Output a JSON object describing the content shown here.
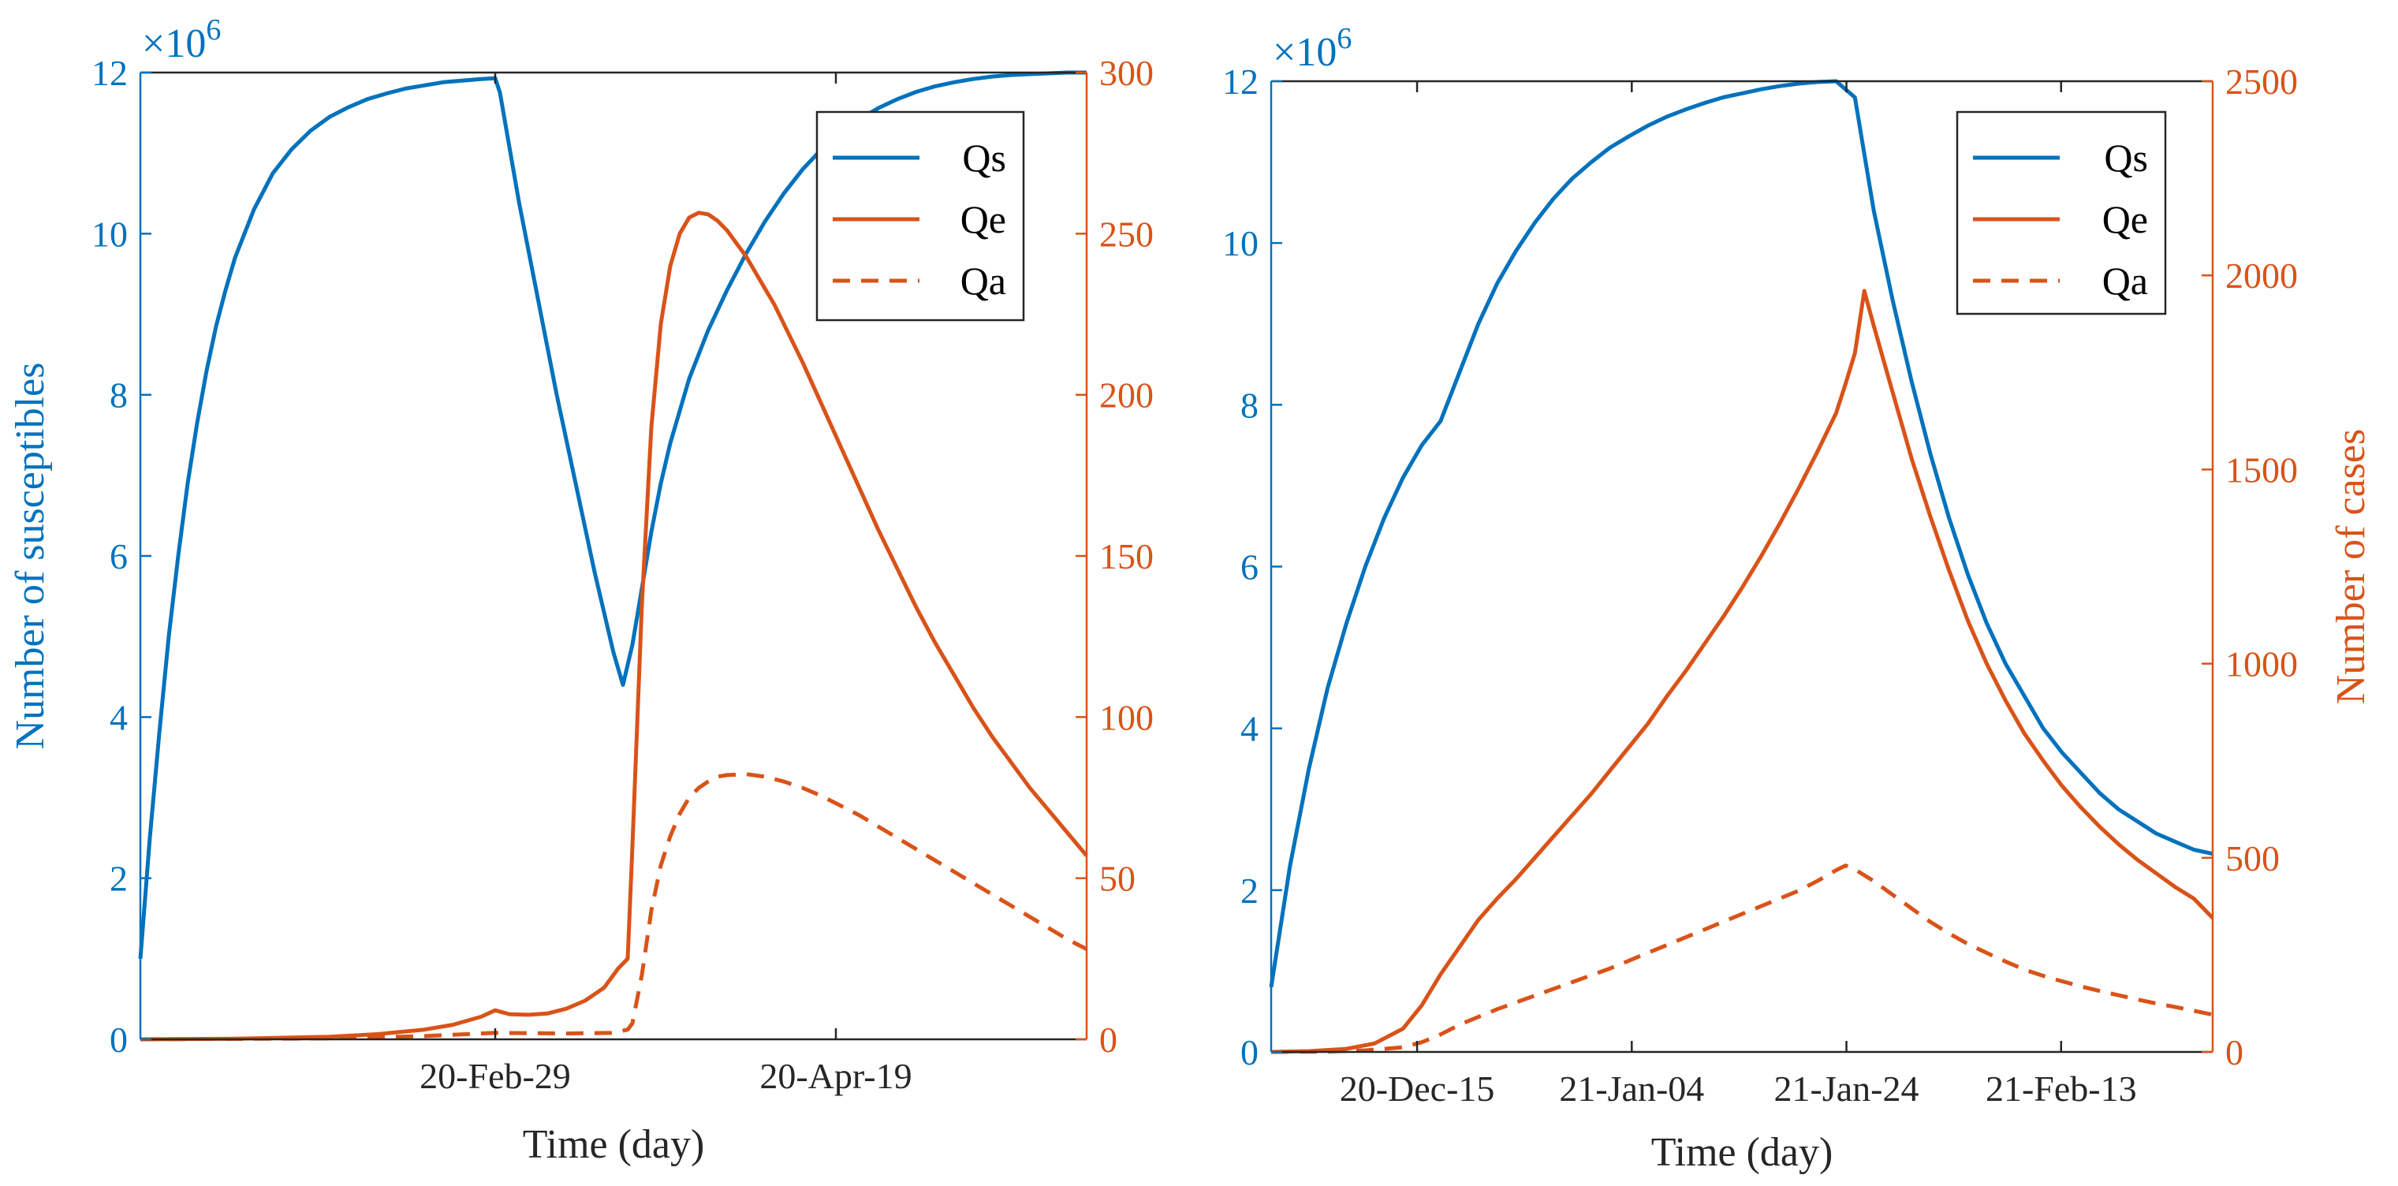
{
  "chart_data": [
    {
      "type": "line",
      "xlabel": "Time (day)",
      "ylabel_left": "Number of susceptibles",
      "ylabel_right": "",
      "x_range": [
        0,
        100
      ],
      "x_ticks": [
        {
          "x": 37.5,
          "label": "20-Feb-29"
        },
        {
          "x": 73.5,
          "label": "20-Apr-19"
        }
      ],
      "ylim_left": [
        0,
        12
      ],
      "yticks_left": [
        "0",
        "2",
        "4",
        "6",
        "8",
        "10",
        "12"
      ],
      "left_exponent": "×10",
      "left_exponent_power": "6",
      "ylim_right": [
        0,
        300
      ],
      "yticks_right": [
        "0",
        "50",
        "100",
        "150",
        "200",
        "250",
        "300"
      ],
      "colors": {
        "left": "#0072BD",
        "right": "#D95319"
      },
      "legend": {
        "position": "top-right",
        "entries": [
          "Qs",
          "Qe",
          "Qa"
        ]
      },
      "series": [
        {
          "name": "Qs",
          "axis": "left",
          "style": "solid",
          "x": [
            0,
            1,
            2,
            3,
            4,
            5,
            6,
            7,
            8,
            9,
            10,
            12,
            14,
            16,
            18,
            20,
            22,
            24,
            26,
            28,
            30,
            32,
            34,
            36,
            37.5,
            38,
            40,
            42,
            44,
            46,
            48,
            50,
            51,
            52,
            53,
            54,
            55,
            56,
            57,
            58,
            60,
            62,
            64,
            66,
            68,
            70,
            72,
            74,
            76,
            78,
            80,
            82,
            84,
            86,
            88,
            90,
            92,
            94,
            96,
            98,
            100
          ],
          "values": [
            1.0,
            2.5,
            3.8,
            5.0,
            6.0,
            6.9,
            7.65,
            8.3,
            8.85,
            9.3,
            9.7,
            10.3,
            10.75,
            11.05,
            11.28,
            11.45,
            11.57,
            11.67,
            11.74,
            11.8,
            11.84,
            11.88,
            11.9,
            11.92,
            11.93,
            11.75,
            10.4,
            9.2,
            8.0,
            6.9,
            5.8,
            4.8,
            4.4,
            4.9,
            5.6,
            6.3,
            6.9,
            7.4,
            7.8,
            8.2,
            8.8,
            9.3,
            9.75,
            10.15,
            10.5,
            10.8,
            11.05,
            11.25,
            11.42,
            11.56,
            11.67,
            11.76,
            11.83,
            11.88,
            11.92,
            11.95,
            11.97,
            11.98,
            11.99,
            12.0,
            12.0
          ]
        },
        {
          "name": "Qe",
          "axis": "right",
          "style": "solid",
          "x": [
            0,
            10,
            20,
            25,
            30,
            33,
            36,
            37.5,
            39,
            41,
            43,
            45,
            47,
            49,
            50.5,
            51.5,
            52,
            53,
            54,
            55,
            56,
            57,
            58,
            59,
            60,
            61,
            62,
            63,
            64,
            65,
            66,
            67,
            68,
            70,
            72,
            74,
            76,
            78,
            80,
            82,
            84,
            86,
            88,
            90,
            92,
            94,
            96,
            98,
            100
          ],
          "values": [
            0,
            0.2,
            0.8,
            1.6,
            3.0,
            4.5,
            7.0,
            9.0,
            7.8,
            7.6,
            8.0,
            9.5,
            12.0,
            16.0,
            22.0,
            25.0,
            60.0,
            135.0,
            190.0,
            222.0,
            240.0,
            250.0,
            255.0,
            256.5,
            256.0,
            254.0,
            251.0,
            247.0,
            243.0,
            238.0,
            233.0,
            228.0,
            222.0,
            210.0,
            197.0,
            184.0,
            171.0,
            158.0,
            146.0,
            134.0,
            123.0,
            113.0,
            103.0,
            94.0,
            86.0,
            78.0,
            71.0,
            64.0,
            57.0
          ]
        },
        {
          "name": "Qa",
          "axis": "right",
          "style": "dashed",
          "x": [
            0,
            20,
            30,
            37.5,
            45,
            50,
            51.5,
            52,
            53,
            54,
            55,
            56,
            57,
            58,
            59,
            60,
            61,
            62,
            64,
            66,
            68,
            70,
            72,
            74,
            76,
            78,
            80,
            82,
            84,
            86,
            88,
            90,
            92,
            94,
            96,
            98,
            100
          ],
          "values": [
            0,
            0.3,
            1.0,
            2.0,
            1.8,
            2.0,
            3.0,
            5.0,
            20.0,
            40.0,
            54.0,
            63.0,
            70.0,
            75.0,
            78.0,
            80.0,
            81.5,
            82.0,
            82.3,
            81.5,
            80.0,
            78.0,
            75.5,
            72.5,
            69.5,
            66.0,
            62.5,
            59.0,
            55.5,
            52.0,
            48.5,
            45.0,
            41.5,
            38.0,
            34.5,
            31.0,
            28.0
          ]
        }
      ]
    },
    {
      "type": "line",
      "xlabel": "Time (day)",
      "ylabel_left": "",
      "ylabel_right": "Number of cases",
      "x_range": [
        0,
        100
      ],
      "x_ticks": [
        {
          "x": 15.5,
          "label": "20-Dec-15"
        },
        {
          "x": 38.3,
          "label": "21-Jan-04"
        },
        {
          "x": 61.1,
          "label": "21-Jan-24"
        },
        {
          "x": 83.9,
          "label": "21-Feb-13"
        }
      ],
      "ylim_left": [
        0,
        12
      ],
      "yticks_left": [
        "0",
        "2",
        "4",
        "6",
        "8",
        "10",
        "12"
      ],
      "left_exponent": "×10",
      "left_exponent_power": "6",
      "ylim_right": [
        0,
        2500
      ],
      "yticks_right": [
        "0",
        "500",
        "1000",
        "1500",
        "2000",
        "2500"
      ],
      "colors": {
        "left": "#0072BD",
        "right": "#D95319"
      },
      "legend": {
        "position": "top-right",
        "entries": [
          "Qs",
          "Qe",
          "Qa"
        ]
      },
      "series": [
        {
          "name": "Qs",
          "axis": "left",
          "style": "solid",
          "x": [
            0,
            2,
            4,
            6,
            8,
            10,
            12,
            14,
            16,
            18,
            20,
            22,
            24,
            26,
            28,
            30,
            32,
            34,
            36,
            38,
            40,
            42,
            44,
            46,
            48,
            50,
            52,
            54,
            56,
            58,
            60,
            62,
            63,
            64,
            66,
            68,
            70,
            72,
            74,
            76,
            78,
            80,
            82,
            84,
            86,
            88,
            90,
            92,
            94,
            96,
            98,
            100
          ],
          "values": [
            0.8,
            2.3,
            3.5,
            4.5,
            5.3,
            6.0,
            6.6,
            7.1,
            7.5,
            7.8,
            8.4,
            9.0,
            9.5,
            9.9,
            10.25,
            10.55,
            10.8,
            11.0,
            11.18,
            11.32,
            11.45,
            11.56,
            11.65,
            11.73,
            11.8,
            11.85,
            11.9,
            11.94,
            11.97,
            11.99,
            12.0,
            11.8,
            11.1,
            10.4,
            9.3,
            8.3,
            7.4,
            6.6,
            5.9,
            5.3,
            4.8,
            4.4,
            4.0,
            3.7,
            3.45,
            3.2,
            3.0,
            2.85,
            2.7,
            2.6,
            2.5,
            2.45
          ]
        },
        {
          "name": "Qe",
          "axis": "right",
          "style": "solid",
          "x": [
            0,
            4,
            8,
            11,
            14,
            16,
            18,
            20,
            22,
            24,
            26,
            28,
            30,
            32,
            34,
            36,
            38,
            40,
            42,
            44,
            46,
            48,
            50,
            52,
            54,
            56,
            58,
            60,
            61,
            62,
            63,
            64,
            66,
            68,
            70,
            72,
            74,
            76,
            78,
            80,
            82,
            84,
            86,
            88,
            90,
            92,
            94,
            96,
            98,
            100
          ],
          "values": [
            0,
            2,
            8,
            22,
            60,
            120,
            200,
            270,
            340,
            395,
            445,
            500,
            555,
            610,
            665,
            725,
            785,
            845,
            915,
            980,
            1050,
            1120,
            1195,
            1275,
            1360,
            1450,
            1545,
            1645,
            1720,
            1800,
            1960,
            1870,
            1700,
            1530,
            1380,
            1240,
            1110,
            1000,
            905,
            820,
            750,
            685,
            630,
            580,
            535,
            495,
            460,
            425,
            395,
            345
          ]
        },
        {
          "name": "Qa",
          "axis": "right",
          "style": "dashed",
          "x": [
            0,
            6,
            10,
            14,
            16,
            18,
            20,
            24,
            28,
            32,
            36,
            40,
            44,
            48,
            52,
            56,
            58,
            60,
            61,
            62,
            64,
            66,
            68,
            70,
            72,
            74,
            76,
            78,
            80,
            82,
            84,
            86,
            88,
            90,
            92,
            94,
            96,
            98,
            100
          ],
          "values": [
            0,
            1,
            4,
            12,
            25,
            45,
            70,
            110,
            145,
            180,
            215,
            255,
            295,
            335,
            375,
            415,
            440,
            468,
            480,
            470,
            440,
            405,
            370,
            335,
            305,
            278,
            255,
            233,
            212,
            196,
            182,
            169,
            157,
            146,
            135,
            125,
            116,
            106,
            96
          ]
        }
      ]
    }
  ]
}
